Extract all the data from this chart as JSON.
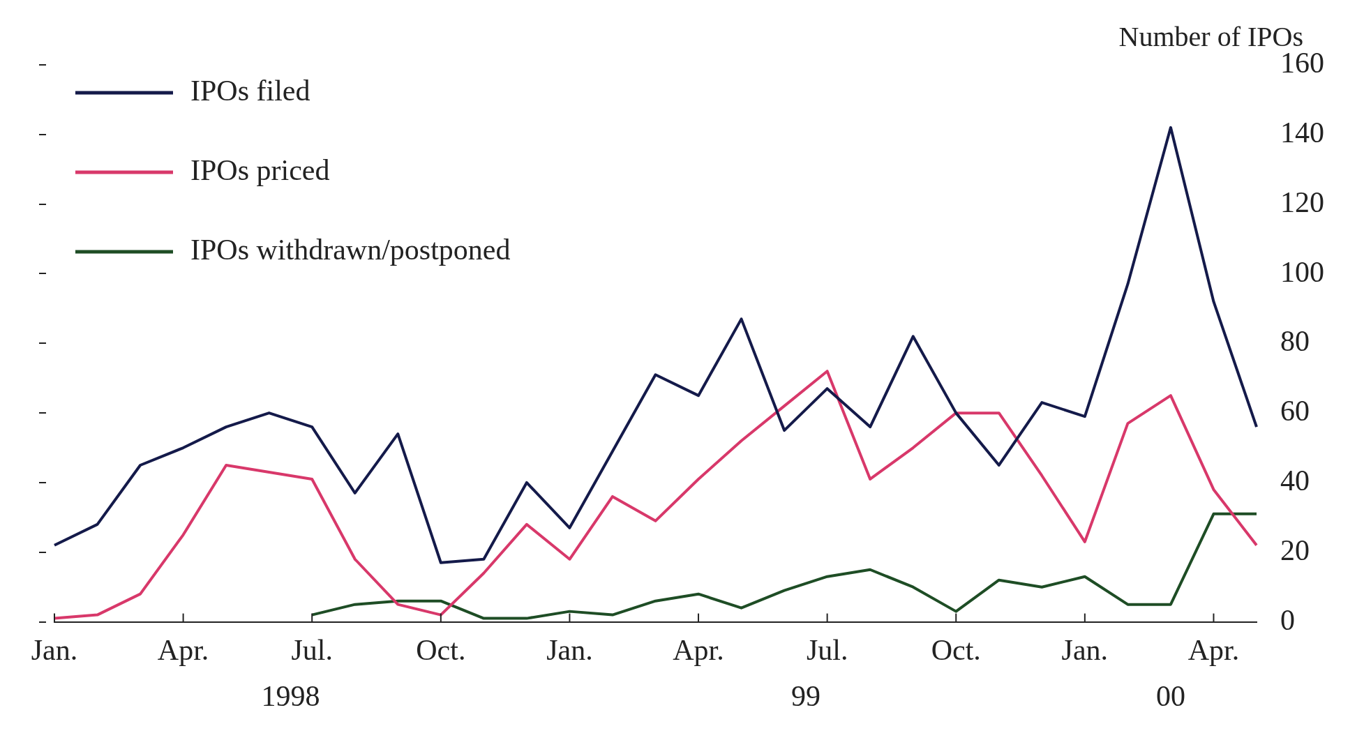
{
  "chart_data": {
    "type": "line",
    "ylabel": "Number of IPOs",
    "categories": [
      "Jan.",
      null,
      null,
      "Apr.",
      null,
      null,
      "Jul.",
      null,
      null,
      "Oct.",
      null,
      null,
      "Jan.",
      null,
      null,
      "Apr.",
      null,
      null,
      "Jul.",
      null,
      null,
      "Oct.",
      null,
      null,
      "Jan.",
      null,
      null,
      "Apr.",
      null
    ],
    "series": [
      {
        "name": "IPOs filed",
        "color": "#141a4a",
        "values": [
          22,
          28,
          45,
          50,
          56,
          60,
          56,
          37,
          54,
          17,
          18,
          40,
          27,
          49,
          71,
          65,
          87,
          55,
          67,
          56,
          82,
          60,
          45,
          63,
          59,
          97,
          142,
          92,
          56
        ]
      },
      {
        "name": "IPOs priced",
        "color": "#d8386a",
        "values": [
          1,
          2,
          8,
          25,
          45,
          43,
          41,
          18,
          5,
          2,
          14,
          28,
          18,
          36,
          29,
          41,
          52,
          62,
          72,
          41,
          50,
          60,
          60,
          42,
          23,
          57,
          65,
          38,
          22
        ]
      },
      {
        "name": "IPOs withdrawn/postponed",
        "color": "#1e4d25",
        "values": [
          null,
          null,
          null,
          null,
          null,
          null,
          2,
          5,
          6,
          6,
          1,
          1,
          3,
          2,
          6,
          8,
          4,
          9,
          13,
          15,
          10,
          3,
          12,
          10,
          13,
          5,
          5,
          31,
          31
        ]
      }
    ],
    "ylim": [
      0,
      160
    ],
    "yticks": [
      0,
      20,
      40,
      60,
      80,
      100,
      120,
      140,
      160
    ],
    "grid": false,
    "legend": "top left",
    "line_style": "solid",
    "marker": "none",
    "annotations": [
      "1998",
      "99",
      "00"
    ]
  }
}
